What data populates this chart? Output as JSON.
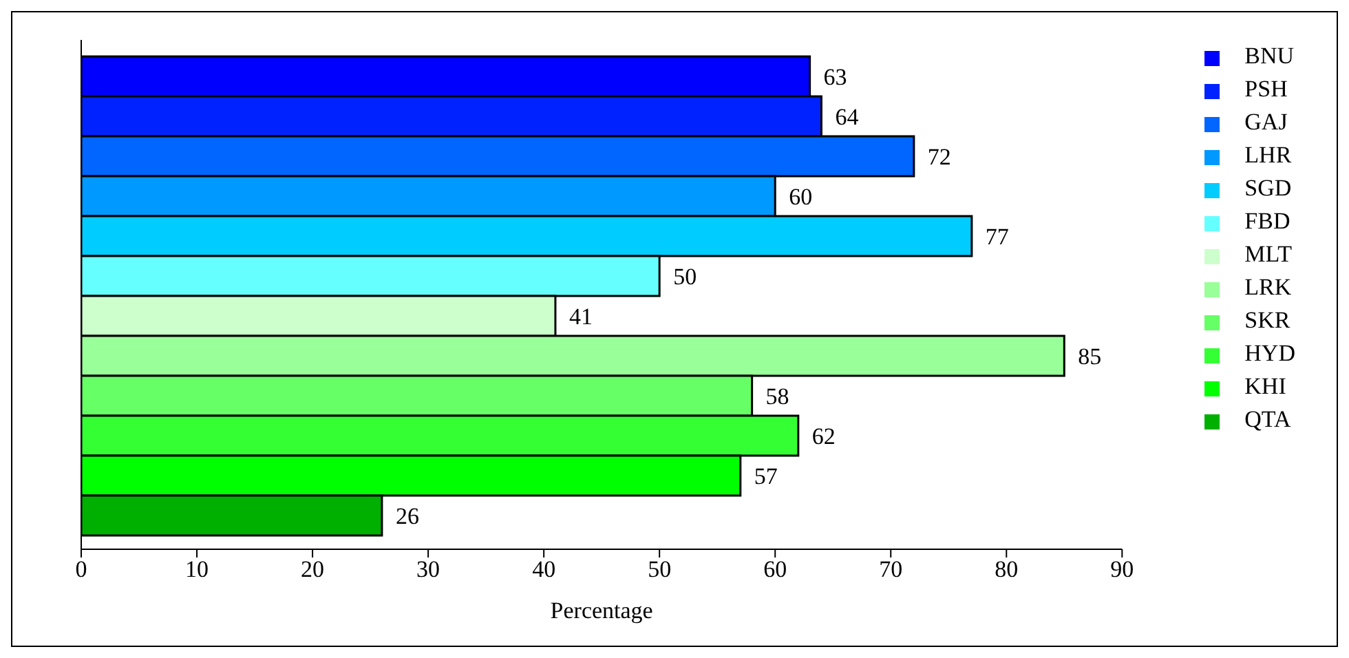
{
  "chart_data": {
    "type": "bar",
    "orientation": "horizontal",
    "categories": [
      null
    ],
    "xlabel": "Percentage",
    "xlim": [
      0,
      90
    ],
    "xticks": [
      0,
      10,
      20,
      30,
      40,
      50,
      60,
      70,
      80,
      90
    ],
    "grid": false,
    "legend": "right",
    "data_labels": true,
    "series": [
      {
        "name": "BNU",
        "color": "#0000ff",
        "values": [
          63
        ]
      },
      {
        "name": "PSH",
        "color": "#0022ff",
        "values": [
          64
        ]
      },
      {
        "name": "GAJ",
        "color": "#0066ff",
        "values": [
          72
        ]
      },
      {
        "name": "LHR",
        "color": "#0099ff",
        "values": [
          60
        ]
      },
      {
        "name": "SGD",
        "color": "#00ccff",
        "values": [
          77
        ]
      },
      {
        "name": "FBD",
        "color": "#66ffff",
        "values": [
          50
        ]
      },
      {
        "name": "MLT",
        "color": "#ccffcc",
        "values": [
          41
        ]
      },
      {
        "name": "LRK",
        "color": "#99ff99",
        "values": [
          85
        ]
      },
      {
        "name": "SKR",
        "color": "#66ff66",
        "values": [
          58
        ]
      },
      {
        "name": "HYD",
        "color": "#33ff33",
        "values": [
          62
        ]
      },
      {
        "name": "KHI",
        "color": "#00ff00",
        "values": [
          57
        ]
      },
      {
        "name": "QTA",
        "color": "#00b000",
        "values": [
          26
        ]
      }
    ]
  }
}
